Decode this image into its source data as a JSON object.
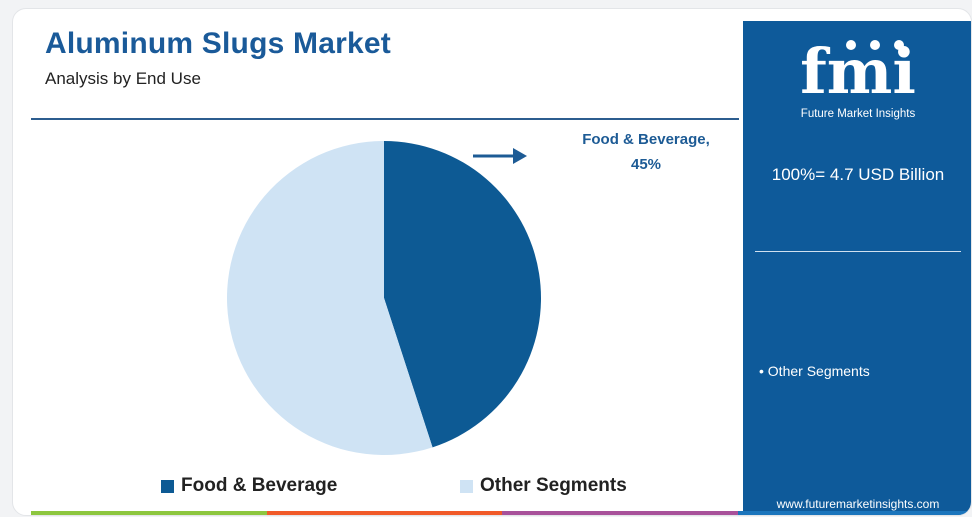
{
  "header": {
    "title": "Aluminum Slugs Market",
    "subtitle": "Analysis by End Use"
  },
  "chart_data": {
    "type": "pie",
    "title": "Aluminum Slugs Market",
    "subtitle": "Analysis by End Use",
    "slices": [
      {
        "label": "Food & Beverage",
        "value": 45,
        "color": "#0d5a94"
      },
      {
        "label": "Other Segments",
        "value": 55,
        "color": "#cfe3f4"
      }
    ],
    "legend": [
      "Food & Beverage",
      "Other Segments"
    ],
    "legend_position": "bottom",
    "annotation": {
      "label": "Food & Beverage,",
      "value": "45%"
    }
  },
  "callout": {
    "label": "Food & Beverage,",
    "value": "45%"
  },
  "legend": {
    "items": [
      {
        "label": "Food & Beverage",
        "color": "#0d5a94"
      },
      {
        "label": "Other Segments",
        "color": "#cfe3f4"
      }
    ]
  },
  "sidebar": {
    "logo_text": "fmi",
    "logo_tagline": "Future Market Insights",
    "total": "100%= 4.7 USD Billion",
    "bullet": "• Other Segments",
    "website": "www.futuremarketinsights.com",
    "background": "#0e5a9a"
  },
  "footer_colors": [
    "#8dc63f",
    "#f15a29",
    "#a8519a",
    "#1b75bc"
  ]
}
